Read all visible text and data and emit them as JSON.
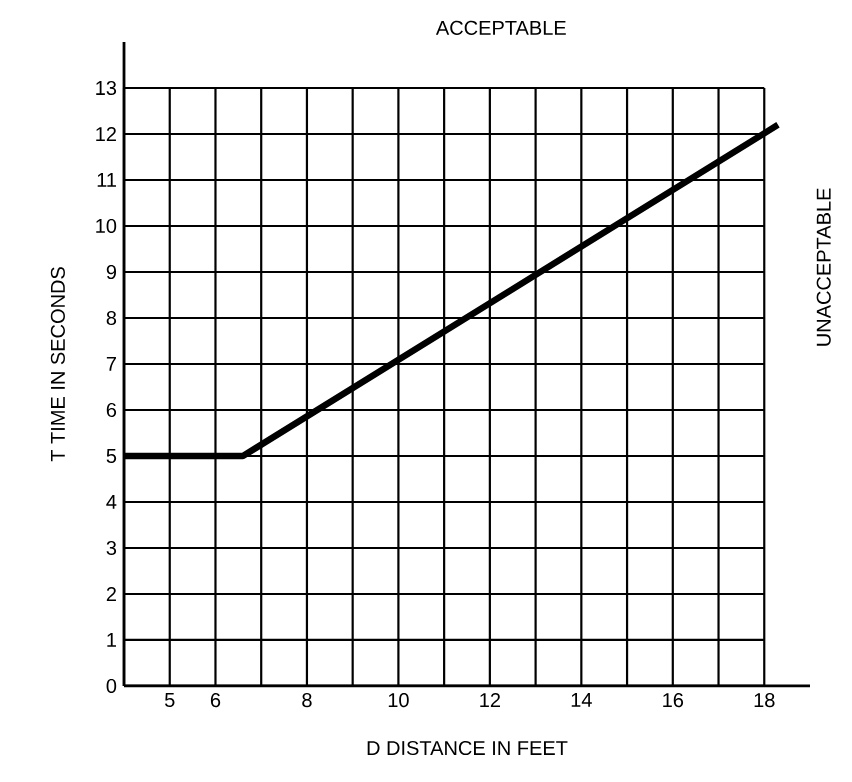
{
  "chart_data": {
    "type": "line",
    "xlabel": "D DISTANCE IN FEET",
    "ylabel": "T TIME IN SECONDS",
    "annotations": [
      "ACCEPTABLE",
      "UNACCEPTABLE"
    ],
    "series": [
      {
        "color": "#000000",
        "x": [
          4,
          6.6,
          18.3
        ],
        "values": [
          5,
          5,
          12.2
        ]
      }
    ],
    "xlim": [
      4,
      19
    ],
    "ylim": [
      0,
      14
    ],
    "xticks": [
      {
        "value": 4,
        "label": null
      },
      5,
      6,
      {
        "value": 7,
        "label": null
      },
      8,
      {
        "value": 9,
        "label": null
      },
      10,
      {
        "value": 11,
        "label": null
      },
      12,
      {
        "value": 13,
        "label": null
      },
      14,
      {
        "value": 15,
        "label": null
      },
      16,
      {
        "value": 17,
        "label": null
      },
      18
    ],
    "yticks": [
      0,
      1,
      2,
      3,
      4,
      5,
      6,
      7,
      8,
      9,
      10,
      11,
      12,
      13
    ],
    "grid": true,
    "marker": "none",
    "line_style": "solid"
  }
}
